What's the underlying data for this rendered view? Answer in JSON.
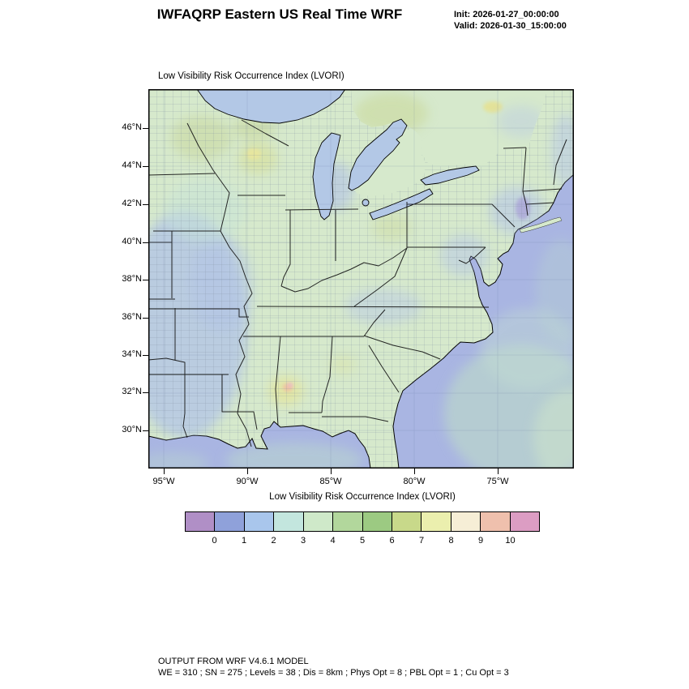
{
  "header": {
    "title": "IWFAQRP Eastern US Real Time WRF",
    "init_label": "Init: 2026-01-27_00:00:00",
    "valid_label": "Valid: 2026-01-30_15:00:00"
  },
  "map": {
    "title": "Low Visibility Risk Occurrence Index   (LVORI)",
    "lat_labels": [
      "46°N",
      "44°N",
      "42°N",
      "40°N",
      "38°N",
      "36°N",
      "34°N",
      "32°N",
      "30°N"
    ],
    "lon_labels": [
      "95°W",
      "90°W",
      "85°W",
      "80°W",
      "75°W"
    ],
    "palette": {
      "ocean": "#a9b5e2",
      "land": "#d6e9cc",
      "lake": "#b3c8e6",
      "county_line": "#7f8fa0",
      "state_line": "#111111"
    }
  },
  "colorbar": {
    "label": "Low Visibility Risk Occurrence Index  (LVORI)",
    "ticks": [
      "0",
      "1",
      "2",
      "3",
      "4",
      "5",
      "6",
      "7",
      "8",
      "9",
      "10"
    ],
    "colors": [
      "#b08fc6",
      "#8fa1da",
      "#a9c6ec",
      "#c3e6de",
      "#cfe9c9",
      "#b2d79c",
      "#9cca82",
      "#c8d98a",
      "#ebefae",
      "#f6eed6",
      "#efc0ad",
      "#dc9dc3"
    ]
  },
  "footer": {
    "line1": "OUTPUT FROM WRF V4.6.1 MODEL",
    "line2": "WE = 310 ; SN = 275 ; Levels = 38 ; Dis = 8km ; Phys Opt = 8 ; PBL Opt = 1 ; Cu Opt = 3"
  }
}
